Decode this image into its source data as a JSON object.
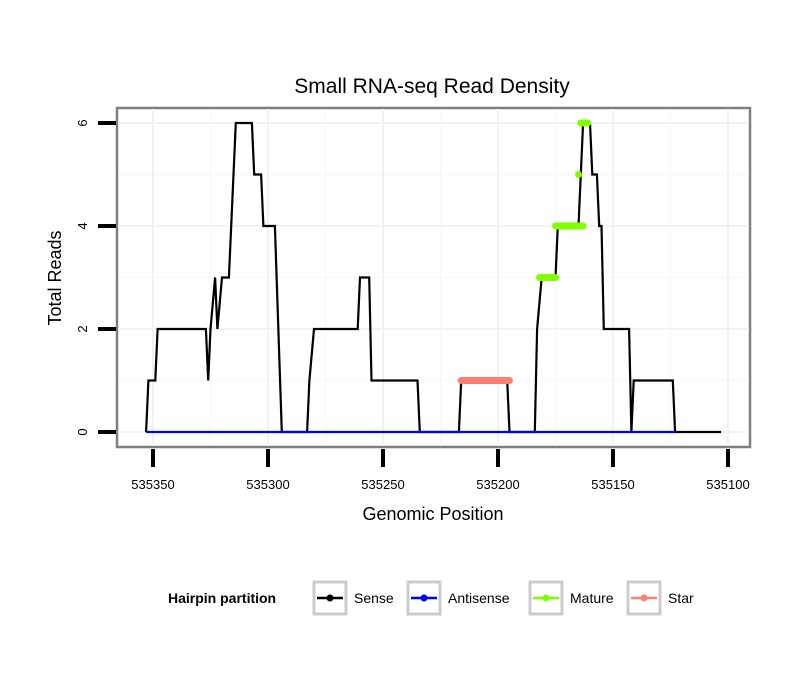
{
  "chart_data": {
    "type": "line",
    "title": "Small RNA-seq Read Density",
    "xlabel": "Genomic Position",
    "ylabel": "Total Reads",
    "xlim": [
      535363,
      535088
    ],
    "x_reversed": true,
    "ylim": [
      -0.3,
      6.3
    ],
    "xticks": [
      535350,
      535300,
      535250,
      535200,
      535150,
      535100
    ],
    "xtick_labels": [
      "535350",
      "535300",
      "535250",
      "535200",
      "535150",
      "535100"
    ],
    "yticks": [
      0,
      2,
      4,
      6
    ],
    "ytick_labels": [
      "0",
      "2",
      "4",
      "6"
    ],
    "grid": true,
    "legend": {
      "title": "Hairpin partition",
      "position": "bottom",
      "entries": [
        {
          "label": "Sense",
          "color": "#000000"
        },
        {
          "label": "Antisense",
          "color": "#0000ff"
        },
        {
          "label": "Mature",
          "color": "#7fff00"
        },
        {
          "label": "Star",
          "color": "#fa8072"
        }
      ]
    },
    "series": [
      {
        "name": "Sense",
        "color": "#000000",
        "points": [
          [
            535353,
            0
          ],
          [
            535352,
            1
          ],
          [
            535349,
            1
          ],
          [
            535348,
            2
          ],
          [
            535327,
            2
          ],
          [
            535326,
            1
          ],
          [
            535325,
            2
          ],
          [
            535323,
            3
          ],
          [
            535322,
            2
          ],
          [
            535320,
            3
          ],
          [
            535317,
            3
          ],
          [
            535314,
            6
          ],
          [
            535307,
            6
          ],
          [
            535306,
            5
          ],
          [
            535303,
            5
          ],
          [
            535302,
            4
          ],
          [
            535297,
            4
          ],
          [
            535294,
            0
          ],
          [
            535283,
            0
          ],
          [
            535282,
            1
          ],
          [
            535280,
            2
          ],
          [
            535261,
            2
          ],
          [
            535260,
            3
          ],
          [
            535256,
            3
          ],
          [
            535255,
            1
          ],
          [
            535235,
            1
          ],
          [
            535234,
            0
          ],
          [
            535217,
            0
          ],
          [
            535216,
            1
          ],
          [
            535196,
            1
          ],
          [
            535195,
            0
          ],
          [
            535184,
            0
          ],
          [
            535183,
            2
          ],
          [
            535181,
            3
          ],
          [
            535175,
            3
          ],
          [
            535174,
            4
          ],
          [
            535165,
            4
          ],
          [
            535164,
            5
          ],
          [
            535163,
            6
          ],
          [
            535160,
            6
          ],
          [
            535159,
            5
          ],
          [
            535157,
            5
          ],
          [
            535156,
            4
          ],
          [
            535155,
            4
          ],
          [
            535154,
            2
          ],
          [
            535143,
            2
          ],
          [
            535142,
            0
          ],
          [
            535141,
            1
          ],
          [
            535124,
            1
          ],
          [
            535123,
            0
          ],
          [
            535103,
            0
          ]
        ]
      },
      {
        "name": "Antisense",
        "color": "#0000ff",
        "points": [
          [
            535353,
            0
          ],
          [
            535123,
            0
          ]
        ]
      },
      {
        "name": "Mature",
        "color": "#7fff00",
        "segments": [
          {
            "x": [
              535182,
              535175
            ],
            "y": 3
          },
          {
            "x": [
              535175,
              535163
            ],
            "y": 4
          },
          {
            "x": [
              535165,
              535165
            ],
            "y": 5
          },
          {
            "x": [
              535164,
              535161
            ],
            "y": 6
          }
        ]
      },
      {
        "name": "Star",
        "color": "#fa8072",
        "segments": [
          {
            "x": [
              535216,
              535195
            ],
            "y": 1
          }
        ]
      }
    ]
  }
}
